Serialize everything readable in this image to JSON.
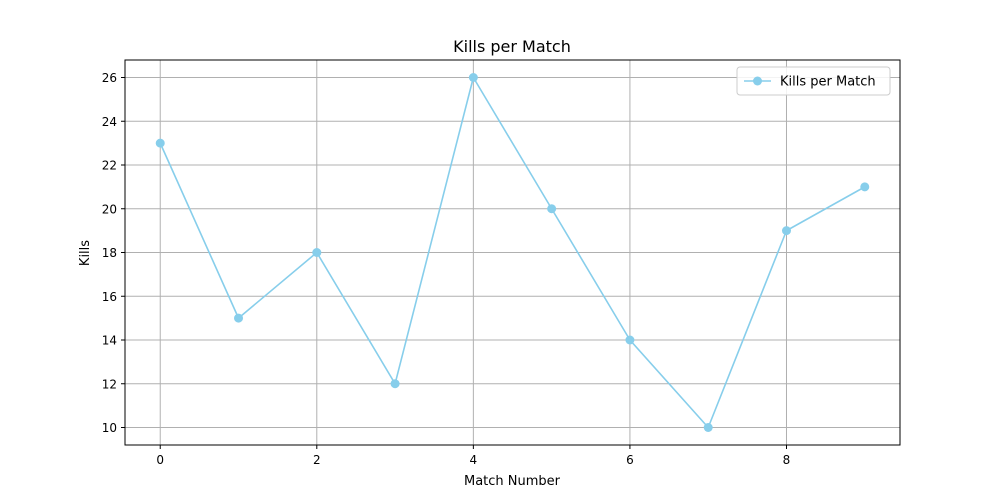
{
  "chart_data": {
    "type": "line",
    "title": "Kills per Match",
    "xlabel": "Match Number",
    "ylabel": "Kills",
    "x": [
      0,
      1,
      2,
      3,
      4,
      5,
      6,
      7,
      8,
      9
    ],
    "series": [
      {
        "name": "Kills per Match",
        "values": [
          23,
          15,
          18,
          12,
          26,
          20,
          14,
          10,
          19,
          21
        ],
        "color": "#87ceeb",
        "marker": "circle"
      }
    ],
    "xlim": [
      -0.45,
      9.45
    ],
    "ylim": [
      9.2,
      26.8
    ],
    "xticks": [
      0,
      2,
      4,
      6,
      8
    ],
    "yticks": [
      10,
      12,
      14,
      16,
      18,
      20,
      22,
      24,
      26
    ],
    "grid": true,
    "grid_x_ticks": [
      0,
      2,
      4,
      6,
      8
    ],
    "legend_position": "top-right"
  }
}
